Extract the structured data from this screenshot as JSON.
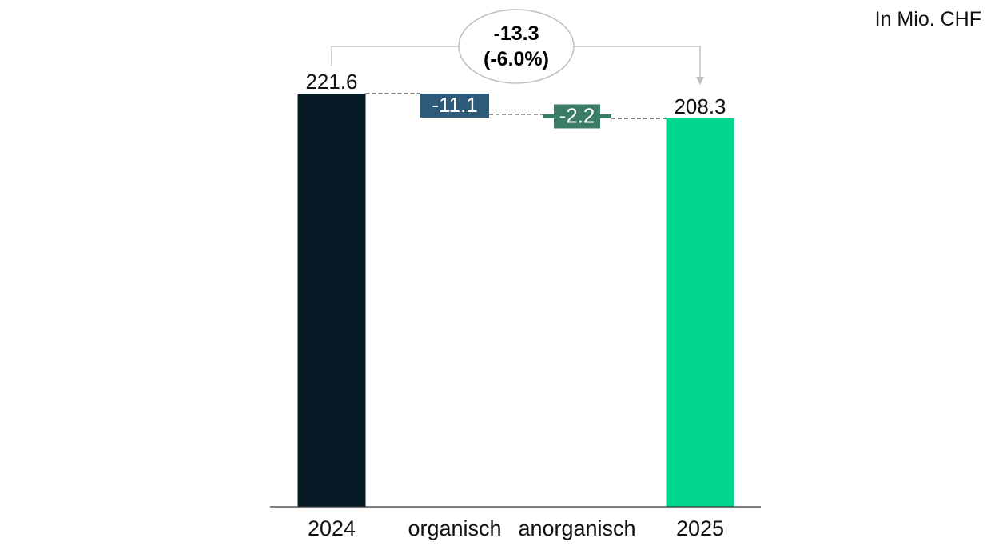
{
  "unit_label": "In Mio. CHF",
  "colors": {
    "start": "#081a26",
    "end": "#00d68f",
    "steps": [
      "#2e5a7a",
      "#3a7d64"
    ],
    "connector": "#333333",
    "bracket": "#bfbfbf"
  },
  "chart_data": {
    "type": "waterfall",
    "title": "",
    "unit": "In Mio. CHF",
    "categories": [
      "2024",
      "organisch",
      "anorganisch",
      "2025"
    ],
    "values": [
      221.6,
      -11.1,
      -2.2,
      208.3
    ],
    "labels": [
      "221.6",
      "-11.1",
      "-2.2",
      "208.3"
    ],
    "kinds": [
      "total",
      "delta",
      "delta",
      "total"
    ],
    "delta_total": "-13.3",
    "delta_pct": "(-6.0%)"
  }
}
